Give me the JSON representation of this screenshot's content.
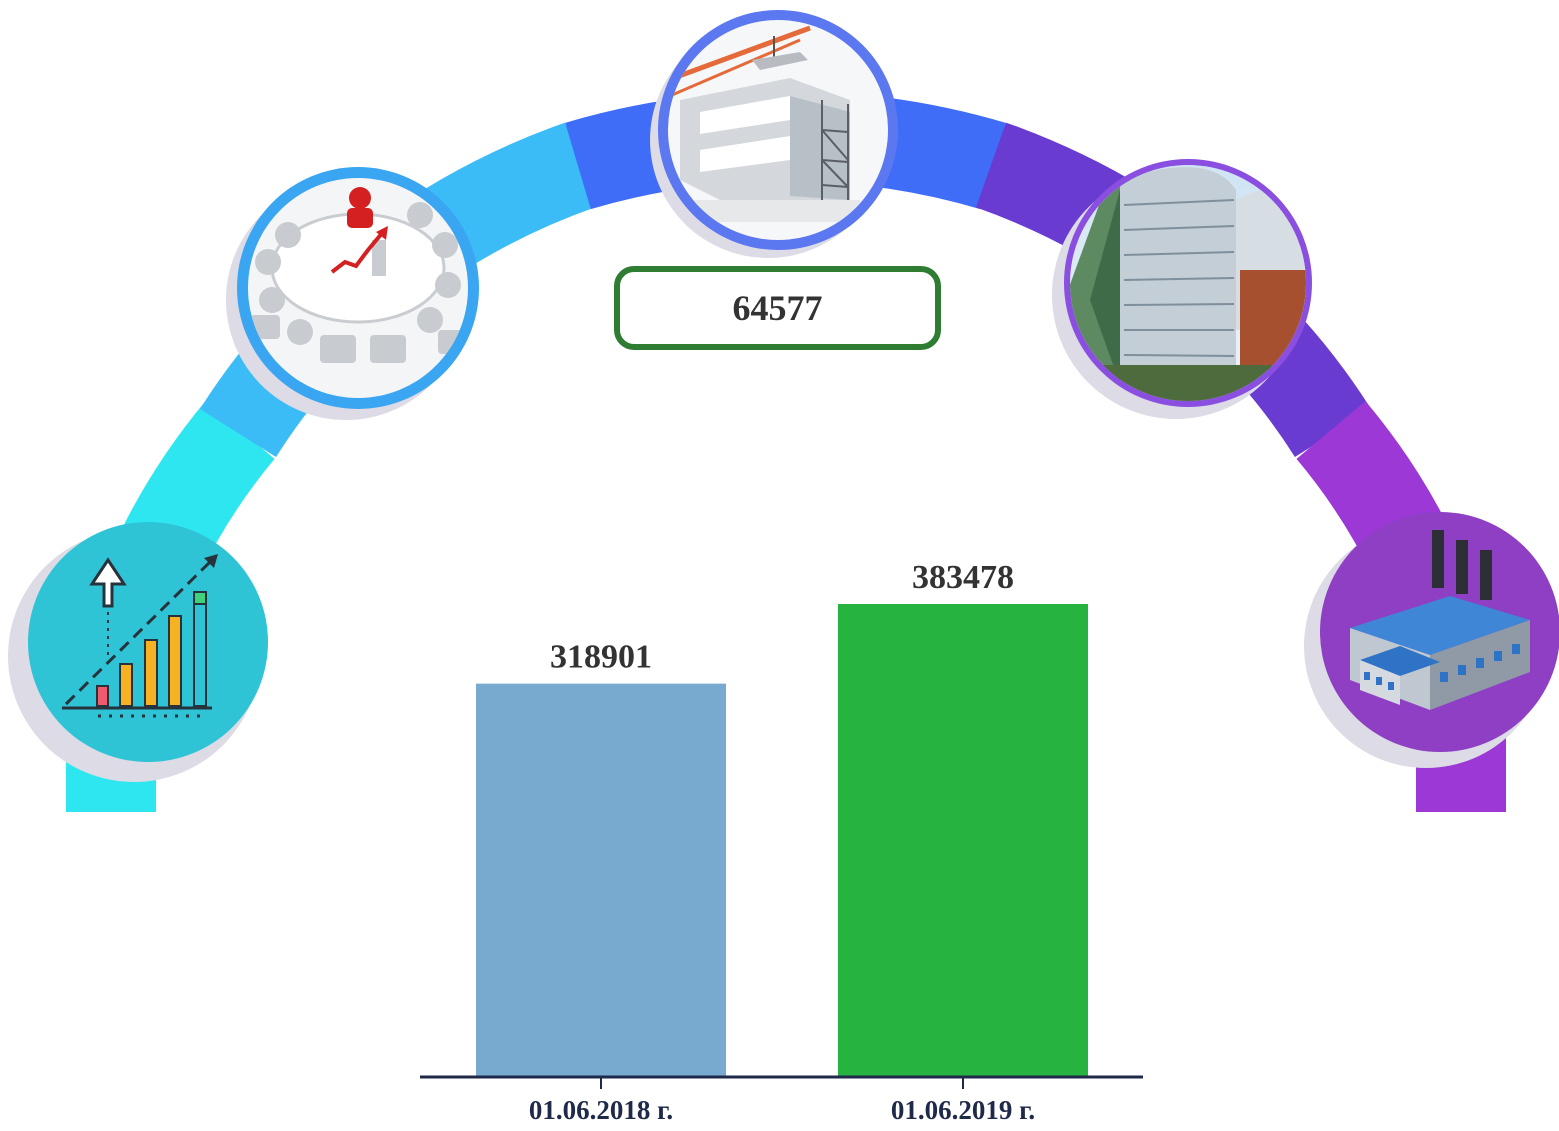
{
  "difference": {
    "value": "64577",
    "border_color": "#2e7d32"
  },
  "arc": {
    "segment_colors": [
      "#2ee6ef",
      "#3bbcf6",
      "#3f6df7",
      "#6a3bd0",
      "#9b38d6"
    ],
    "icons": [
      {
        "name": "growth-chart-icon",
        "ring_color": "#2ec4d6"
      },
      {
        "name": "meeting-icon",
        "ring_color": "#3aa6f2"
      },
      {
        "name": "construction-icon",
        "ring_color": "#4f6ef0"
      },
      {
        "name": "office-building-icon",
        "ring_color": "#8a4fe0"
      },
      {
        "name": "factory-icon",
        "ring_color": "#9b38d6"
      }
    ]
  },
  "chart_data": {
    "type": "bar",
    "categories": [
      "01.06.2018 г.",
      "01.06.2019 г."
    ],
    "values": [
      318901,
      383478
    ],
    "value_labels": [
      "318901",
      "383478"
    ],
    "colors": [
      "#78a9cf",
      "#27b33f"
    ],
    "title": "",
    "xlabel": "",
    "ylabel": "",
    "ylim": [
      0,
      383478
    ],
    "grid": false,
    "legend": "none",
    "axis_color": "#1f2a4a"
  }
}
